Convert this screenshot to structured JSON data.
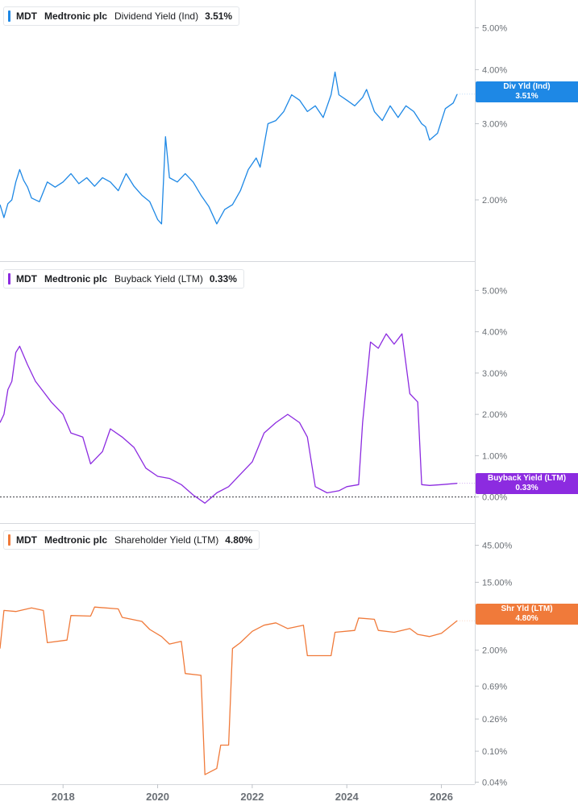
{
  "chart_data": {
    "type": "line",
    "x_axis": {
      "ticks": [
        {
          "label": "2018",
          "year": 2018
        },
        {
          "label": "2020",
          "year": 2020
        },
        {
          "label": "2022",
          "year": 2022
        },
        {
          "label": "2024",
          "year": 2024
        },
        {
          "label": "2026",
          "year": 2026
        }
      ],
      "range": [
        "2016-09",
        "2026-06"
      ]
    },
    "panels": [
      {
        "id": "dividend",
        "ticker": "MDT",
        "company": "Medtronic plc",
        "metric": "Dividend Yield (Ind)",
        "value_label": "3.51%",
        "badge_title": "Div Yld (Ind)",
        "badge_value": "3.51%",
        "color": "#1e88e5",
        "scale": "log",
        "y_range": [
          1.6,
          5.6
        ],
        "y_ticks": [
          {
            "label": "5.00%",
            "value": 5
          },
          {
            "label": "4.00%",
            "value": 4
          },
          {
            "label": "3.00%",
            "value": 3
          },
          {
            "label": "2.00%",
            "value": 2
          }
        ],
        "series": [
          {
            "x": "2016-09",
            "y": 1.95
          },
          {
            "x": "2016-10",
            "y": 1.82
          },
          {
            "x": "2016-11",
            "y": 1.96
          },
          {
            "x": "2016-12",
            "y": 2.0
          },
          {
            "x": "2017-01",
            "y": 2.2
          },
          {
            "x": "2017-02",
            "y": 2.35
          },
          {
            "x": "2017-03",
            "y": 2.22
          },
          {
            "x": "2017-04",
            "y": 2.14
          },
          {
            "x": "2017-05",
            "y": 2.02
          },
          {
            "x": "2017-07",
            "y": 1.98
          },
          {
            "x": "2017-09",
            "y": 2.2
          },
          {
            "x": "2017-11",
            "y": 2.14
          },
          {
            "x": "2018-01",
            "y": 2.2
          },
          {
            "x": "2018-03",
            "y": 2.3
          },
          {
            "x": "2018-05",
            "y": 2.18
          },
          {
            "x": "2018-07",
            "y": 2.25
          },
          {
            "x": "2018-09",
            "y": 2.15
          },
          {
            "x": "2018-11",
            "y": 2.25
          },
          {
            "x": "2019-01",
            "y": 2.2
          },
          {
            "x": "2019-03",
            "y": 2.1
          },
          {
            "x": "2019-05",
            "y": 2.3
          },
          {
            "x": "2019-07",
            "y": 2.15
          },
          {
            "x": "2019-09",
            "y": 2.05
          },
          {
            "x": "2019-11",
            "y": 1.98
          },
          {
            "x": "2020-01",
            "y": 1.8
          },
          {
            "x": "2020-02",
            "y": 1.76
          },
          {
            "x": "2020-03",
            "y": 2.8
          },
          {
            "x": "2020-04",
            "y": 2.25
          },
          {
            "x": "2020-06",
            "y": 2.2
          },
          {
            "x": "2020-08",
            "y": 2.3
          },
          {
            "x": "2020-10",
            "y": 2.2
          },
          {
            "x": "2020-12",
            "y": 2.05
          },
          {
            "x": "2021-02",
            "y": 1.93
          },
          {
            "x": "2021-04",
            "y": 1.76
          },
          {
            "x": "2021-06",
            "y": 1.9
          },
          {
            "x": "2021-08",
            "y": 1.95
          },
          {
            "x": "2021-10",
            "y": 2.1
          },
          {
            "x": "2021-12",
            "y": 2.35
          },
          {
            "x": "2022-02",
            "y": 2.5
          },
          {
            "x": "2022-03",
            "y": 2.38
          },
          {
            "x": "2022-05",
            "y": 3.0
          },
          {
            "x": "2022-07",
            "y": 3.05
          },
          {
            "x": "2022-09",
            "y": 3.2
          },
          {
            "x": "2022-11",
            "y": 3.5
          },
          {
            "x": "2023-01",
            "y": 3.4
          },
          {
            "x": "2023-03",
            "y": 3.2
          },
          {
            "x": "2023-05",
            "y": 3.3
          },
          {
            "x": "2023-07",
            "y": 3.1
          },
          {
            "x": "2023-09",
            "y": 3.5
          },
          {
            "x": "2023-10",
            "y": 3.95
          },
          {
            "x": "2023-11",
            "y": 3.5
          },
          {
            "x": "2024-01",
            "y": 3.4
          },
          {
            "x": "2024-03",
            "y": 3.3
          },
          {
            "x": "2024-05",
            "y": 3.45
          },
          {
            "x": "2024-06",
            "y": 3.6
          },
          {
            "x": "2024-08",
            "y": 3.2
          },
          {
            "x": "2024-10",
            "y": 3.05
          },
          {
            "x": "2024-12",
            "y": 3.3
          },
          {
            "x": "2025-02",
            "y": 3.1
          },
          {
            "x": "2025-04",
            "y": 3.3
          },
          {
            "x": "2025-06",
            "y": 3.2
          },
          {
            "x": "2025-08",
            "y": 3.0
          },
          {
            "x": "2025-09",
            "y": 2.95
          },
          {
            "x": "2025-10",
            "y": 2.75
          },
          {
            "x": "2025-12",
            "y": 2.85
          },
          {
            "x": "2026-02",
            "y": 3.25
          },
          {
            "x": "2026-04",
            "y": 3.35
          },
          {
            "x": "2026-05",
            "y": 3.51
          }
        ]
      },
      {
        "id": "buyback",
        "ticker": "MDT",
        "company": "Medtronic plc",
        "metric": "Buyback Yield (LTM)",
        "value_label": "0.33%",
        "badge_title": "Buyback Yield (LTM)",
        "badge_value": "0.33%",
        "color": "#8c2be0",
        "scale": "linear",
        "y_range": [
          -0.3,
          5.3
        ],
        "zero_line": true,
        "y_ticks": [
          {
            "label": "5.00%",
            "value": 5
          },
          {
            "label": "4.00%",
            "value": 4
          },
          {
            "label": "3.00%",
            "value": 3
          },
          {
            "label": "2.00%",
            "value": 2
          },
          {
            "label": "1.00%",
            "value": 1
          },
          {
            "label": "0.00%",
            "value": 0
          }
        ],
        "series": [
          {
            "x": "2016-09",
            "y": 1.8
          },
          {
            "x": "2016-10",
            "y": 2.0
          },
          {
            "x": "2016-11",
            "y": 2.6
          },
          {
            "x": "2016-12",
            "y": 2.8
          },
          {
            "x": "2017-01",
            "y": 3.5
          },
          {
            "x": "2017-02",
            "y": 3.65
          },
          {
            "x": "2017-04",
            "y": 3.2
          },
          {
            "x": "2017-06",
            "y": 2.8
          },
          {
            "x": "2017-08",
            "y": 2.55
          },
          {
            "x": "2017-10",
            "y": 2.3
          },
          {
            "x": "2018-01",
            "y": 2.0
          },
          {
            "x": "2018-03",
            "y": 1.55
          },
          {
            "x": "2018-06",
            "y": 1.45
          },
          {
            "x": "2018-08",
            "y": 0.8
          },
          {
            "x": "2018-11",
            "y": 1.1
          },
          {
            "x": "2019-01",
            "y": 1.65
          },
          {
            "x": "2019-04",
            "y": 1.45
          },
          {
            "x": "2019-07",
            "y": 1.2
          },
          {
            "x": "2019-10",
            "y": 0.7
          },
          {
            "x": "2020-01",
            "y": 0.5
          },
          {
            "x": "2020-04",
            "y": 0.45
          },
          {
            "x": "2020-07",
            "y": 0.3
          },
          {
            "x": "2020-10",
            "y": 0.05
          },
          {
            "x": "2021-01",
            "y": -0.15
          },
          {
            "x": "2021-04",
            "y": 0.1
          },
          {
            "x": "2021-07",
            "y": 0.25
          },
          {
            "x": "2021-10",
            "y": 0.55
          },
          {
            "x": "2022-01",
            "y": 0.85
          },
          {
            "x": "2022-04",
            "y": 1.55
          },
          {
            "x": "2022-07",
            "y": 1.8
          },
          {
            "x": "2022-10",
            "y": 2.0
          },
          {
            "x": "2023-01",
            "y": 1.8
          },
          {
            "x": "2023-03",
            "y": 1.45
          },
          {
            "x": "2023-05",
            "y": 0.25
          },
          {
            "x": "2023-08",
            "y": 0.1
          },
          {
            "x": "2023-11",
            "y": 0.15
          },
          {
            "x": "2024-01",
            "y": 0.25
          },
          {
            "x": "2024-04",
            "y": 0.3
          },
          {
            "x": "2024-05",
            "y": 1.8
          },
          {
            "x": "2024-07",
            "y": 3.75
          },
          {
            "x": "2024-09",
            "y": 3.6
          },
          {
            "x": "2024-11",
            "y": 3.95
          },
          {
            "x": "2025-01",
            "y": 3.7
          },
          {
            "x": "2025-03",
            "y": 3.95
          },
          {
            "x": "2025-05",
            "y": 2.5
          },
          {
            "x": "2025-07",
            "y": 2.3
          },
          {
            "x": "2025-08",
            "y": 0.3
          },
          {
            "x": "2025-10",
            "y": 0.28
          },
          {
            "x": "2026-01",
            "y": 0.3
          },
          {
            "x": "2026-05",
            "y": 0.33
          }
        ]
      },
      {
        "id": "shareholder",
        "ticker": "MDT",
        "company": "Medtronic plc",
        "metric": "Shareholder Yield (LTM)",
        "value_label": "4.80%",
        "badge_title": "Shr Yld (LTM)",
        "badge_value": "4.80%",
        "color": "#f07a3a",
        "scale": "log",
        "y_range": [
          0.035,
          70
        ],
        "y_ticks": [
          {
            "label": "45.00%",
            "value": 45
          },
          {
            "label": "15.00%",
            "value": 15
          },
          {
            "label": "2.00%",
            "value": 2
          },
          {
            "label": "0.69%",
            "value": 0.69
          },
          {
            "label": "0.26%",
            "value": 0.26
          },
          {
            "label": "0.10%",
            "value": 0.1
          },
          {
            "label": "0.04%",
            "value": 0.04
          }
        ],
        "series": [
          {
            "x": "2016-09",
            "y": 2.1
          },
          {
            "x": "2016-10",
            "y": 6.5
          },
          {
            "x": "2017-01",
            "y": 6.3
          },
          {
            "x": "2017-05",
            "y": 7.0
          },
          {
            "x": "2017-08",
            "y": 6.5
          },
          {
            "x": "2017-09",
            "y": 2.5
          },
          {
            "x": "2018-02",
            "y": 2.7
          },
          {
            "x": "2018-03",
            "y": 5.6
          },
          {
            "x": "2018-08",
            "y": 5.5
          },
          {
            "x": "2018-09",
            "y": 7.2
          },
          {
            "x": "2019-03",
            "y": 6.8
          },
          {
            "x": "2019-04",
            "y": 5.3
          },
          {
            "x": "2019-09",
            "y": 4.7
          },
          {
            "x": "2019-11",
            "y": 3.7
          },
          {
            "x": "2020-02",
            "y": 3.0
          },
          {
            "x": "2020-04",
            "y": 2.4
          },
          {
            "x": "2020-07",
            "y": 2.6
          },
          {
            "x": "2020-08",
            "y": 1.0
          },
          {
            "x": "2020-12",
            "y": 0.95
          },
          {
            "x": "2021-01",
            "y": 0.05
          },
          {
            "x": "2021-04",
            "y": 0.06
          },
          {
            "x": "2021-05",
            "y": 0.12
          },
          {
            "x": "2021-07",
            "y": 0.12
          },
          {
            "x": "2021-08",
            "y": 2.1
          },
          {
            "x": "2021-10",
            "y": 2.5
          },
          {
            "x": "2022-01",
            "y": 3.5
          },
          {
            "x": "2022-04",
            "y": 4.2
          },
          {
            "x": "2022-07",
            "y": 4.5
          },
          {
            "x": "2022-10",
            "y": 3.8
          },
          {
            "x": "2023-02",
            "y": 4.2
          },
          {
            "x": "2023-03",
            "y": 1.7
          },
          {
            "x": "2023-09",
            "y": 1.7
          },
          {
            "x": "2023-10",
            "y": 3.4
          },
          {
            "x": "2024-03",
            "y": 3.6
          },
          {
            "x": "2024-04",
            "y": 5.2
          },
          {
            "x": "2024-08",
            "y": 5.0
          },
          {
            "x": "2024-09",
            "y": 3.6
          },
          {
            "x": "2025-01",
            "y": 3.4
          },
          {
            "x": "2025-05",
            "y": 3.8
          },
          {
            "x": "2025-07",
            "y": 3.2
          },
          {
            "x": "2025-10",
            "y": 3.0
          },
          {
            "x": "2026-01",
            "y": 3.3
          },
          {
            "x": "2026-05",
            "y": 4.8
          }
        ]
      }
    ]
  }
}
